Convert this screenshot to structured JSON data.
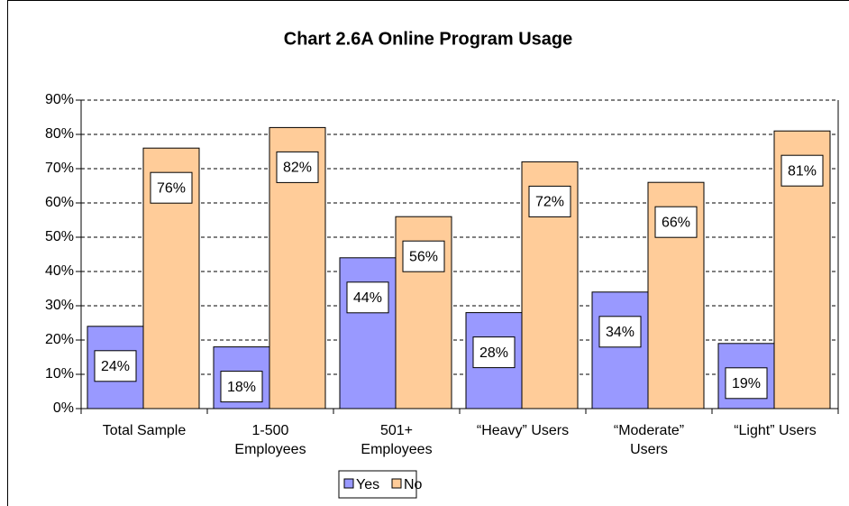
{
  "chart_data": {
    "type": "bar",
    "title": "Chart 2.6A Online Program Usage",
    "categories": [
      "Total Sample",
      "1-500 Employees",
      "501+ Employees",
      "“Heavy” Users",
      "“Moderate” Users",
      "“Light” Users"
    ],
    "series": [
      {
        "name": "Yes",
        "color": "#9999ff",
        "values": [
          24,
          18,
          44,
          28,
          34,
          19
        ],
        "value_labels": [
          "24%",
          "18%",
          "44%",
          "28%",
          "34%",
          "19%"
        ]
      },
      {
        "name": "No",
        "color": "#ffcc99",
        "values": [
          76,
          82,
          56,
          72,
          66,
          81
        ],
        "value_labels": [
          "76%",
          "82%",
          "56%",
          "72%",
          "66%",
          "81%"
        ]
      }
    ],
    "ylim": [
      0,
      90
    ],
    "yticks": [
      {
        "value": 0,
        "label": "0%"
      },
      {
        "value": 10,
        "label": "10%"
      },
      {
        "value": 20,
        "label": "20%"
      },
      {
        "value": 30,
        "label": "30%"
      },
      {
        "value": 40,
        "label": "40%"
      },
      {
        "value": 50,
        "label": "50%"
      },
      {
        "value": 60,
        "label": "60%"
      },
      {
        "value": 70,
        "label": "70%"
      },
      {
        "value": 80,
        "label": "80%"
      },
      {
        "value": 90,
        "label": "90%"
      }
    ],
    "grid": true,
    "legend": "bottom"
  }
}
